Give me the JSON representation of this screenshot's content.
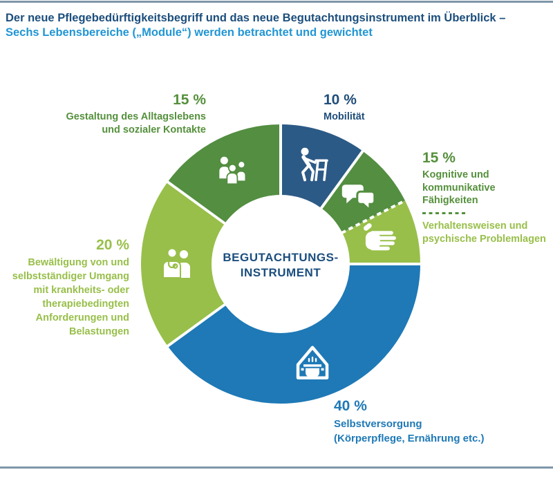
{
  "page": {
    "title_line1": "Der neue Pflegebedürftigkeitsbegriff und das neue Begutachtungsinstrument im Überblick –",
    "title_line2": "Sechs Lebensbereiche („Module“) werden betrachtet und gewichtet"
  },
  "colors": {
    "title_navy": "#1c4e7c",
    "title_blue": "#2196d3",
    "rule_gray_blue": "#7e96a9",
    "segment_navy": "#2c5a86",
    "segment_blue": "#1e79b6",
    "segment_green_dark": "#538e41",
    "segment_green_light": "#98bf4a",
    "text_green_dark": "#55903c",
    "text_green_light": "#98bf4a",
    "text_navy": "#204e7b",
    "text_blue": "#1e79b6",
    "center_text": "#1b4e7e",
    "icon_white": "#ffffff"
  },
  "center": {
    "line1": "BEGUTACHTUNGS-",
    "line2": "INSTRUMENT"
  },
  "labels": {
    "gestaltung": {
      "percent": "15 %",
      "lines": [
        "Gestaltung des Alltagslebens",
        "und sozialer Kontakte"
      ]
    },
    "mobilitaet": {
      "percent": "10 %",
      "lines": [
        "Mobilität"
      ]
    },
    "kognitive": {
      "percent": "15 %",
      "lines_top": [
        "Kognitive und kommunikative",
        "Fähigkeiten"
      ],
      "lines_bottom": [
        "Verhaltensweisen und",
        "psychische Problemlagen"
      ]
    },
    "bewaeltigung": {
      "percent": "20 %",
      "lines": [
        "Bewältigung von und",
        "selbstständiger Umgang",
        "mit krankheits- oder",
        "therapiebedingten",
        "Anforderungen und",
        "Belastungen"
      ]
    },
    "selbstversorgung": {
      "percent": "40 %",
      "lines": [
        "Selbstversorgung",
        "(Körperpflege, Ernährung etc.)"
      ]
    }
  },
  "chart_data": {
    "type": "pie",
    "subtype": "donut",
    "unit": "%",
    "title": "Der neue Pflegebedürftigkeitsbegriff und das neue Begutachtungsinstrument im Überblick – Sechs Lebensbereiche („Module“) werden betrachtet und gewichtet",
    "center_label": "BEGUTACHTUNGS-INSTRUMENT",
    "rotation": "clockwise from 12 o'clock",
    "legend_position": "around chart",
    "categories": [
      "Mobilität",
      "Kognitive und kommunikative Fähigkeiten / Verhaltensweisen und psychische Problemlagen",
      "Selbstversorgung (Körperpflege, Ernährung etc.)",
      "Bewältigung von und selbstständiger Umgang mit krankheits- oder therapiebedingten Anforderungen und Belastungen",
      "Gestaltung des Alltagslebens und sozialer Kontakte"
    ],
    "values": [
      10,
      15,
      40,
      20,
      15
    ],
    "arcs": [
      {
        "id": "mobilitaet",
        "label": "Mobilität",
        "value": 10,
        "color": "#2c5a86",
        "icon": "walker-person-icon",
        "boundary_after": "solid"
      },
      {
        "id": "kognitive",
        "label": "Kognitive und kommunikative Fähigkeiten",
        "value": 7.5,
        "color": "#538e41",
        "icon": "speech-bubbles-icon",
        "boundary_after": "dashed"
      },
      {
        "id": "verhaltensweisen",
        "label": "Verhaltensweisen und psychische Problemlagen",
        "value": 7.5,
        "color": "#98bf4a",
        "icon": "open-hand-icon",
        "boundary_after": "solid"
      },
      {
        "id": "selbstversorgung",
        "label": "Selbstversorgung (Körperpflege, Ernährung etc.)",
        "value": 40,
        "color": "#1e79b6",
        "icon": "house-cooking-pot-icon",
        "boundary_after": "solid"
      },
      {
        "id": "bewaeltigung",
        "label": "Bewältigung von und selbstständiger Umgang mit krankheits- oder therapiebedingten Anforderungen und Belastungen",
        "value": 20,
        "color": "#98bf4a",
        "icon": "doctor-patient-icon",
        "boundary_after": "solid"
      },
      {
        "id": "gestaltung",
        "label": "Gestaltung des Alltagslebens und sozialer Kontakte",
        "value": 15,
        "color": "#538e41",
        "icon": "people-group-icon",
        "boundary_after": "solid"
      }
    ]
  }
}
